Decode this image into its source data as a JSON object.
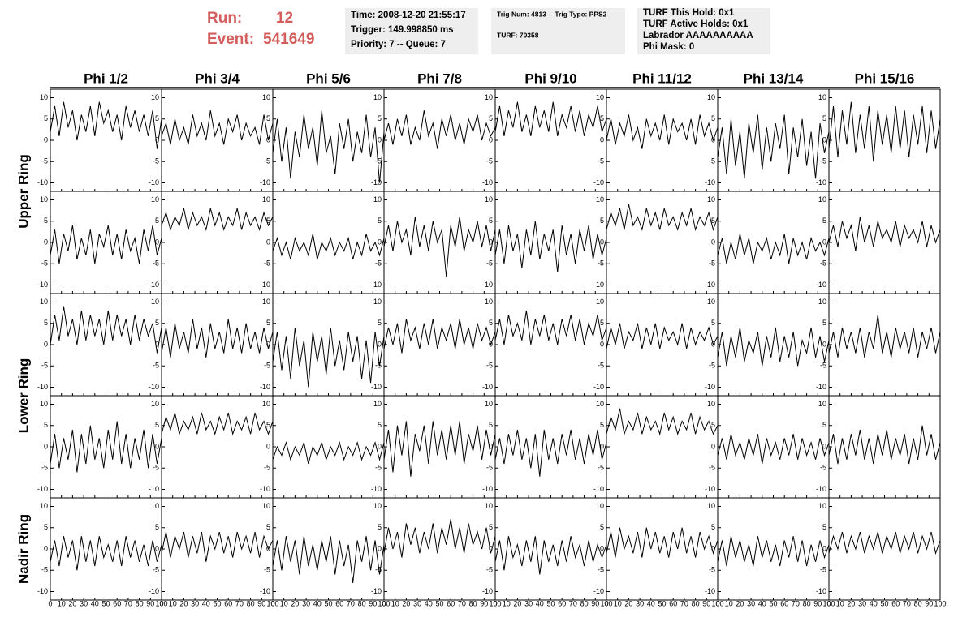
{
  "header": {
    "run_label": "Run:",
    "run": "12",
    "event_label": "Event:",
    "event": "541649",
    "box1": [
      "Time: 2008-12-20 21:55:17",
      "Trigger: 149.998850 ms",
      "Priority: 7 -- Queue: 7"
    ],
    "box2": [
      "Trig Num: 4813 -- Trig Type: PPS2",
      "TURF: 70358"
    ],
    "box3": [
      "TURF This Hold: 0x1",
      "TURF Active Holds: 0x1",
      "Labrador AAAAAAAAAA",
      "Phi Mask: 0"
    ]
  },
  "chart_data": {
    "type": "line",
    "color": "#000000",
    "columns": [
      "Phi 1/2",
      "Phi 3/4",
      "Phi 5/6",
      "Phi 7/8",
      "Phi 9/10",
      "Phi 11/12",
      "Phi 13/14",
      "Phi 15/16"
    ],
    "rows": [
      "Upper Ring",
      "Lower Ring",
      "Nadir Ring"
    ],
    "x": [
      0,
      4,
      8,
      12,
      16,
      20,
      24,
      28,
      32,
      36,
      40,
      44,
      48,
      52,
      56,
      60,
      64,
      68,
      72,
      76,
      80,
      84,
      88,
      92,
      96,
      100
    ],
    "xlim": [
      0,
      100
    ],
    "xticks": [
      0,
      10,
      20,
      30,
      40,
      50,
      60,
      70,
      80,
      90,
      100
    ],
    "ylim": [
      -12,
      12
    ],
    "yticks": [
      -10,
      -5,
      0,
      5,
      10
    ],
    "panels": [
      [
        [
          2,
          8,
          1,
          9,
          3,
          7,
          0,
          6,
          2,
          8,
          1,
          9,
          4,
          7,
          2,
          6,
          0,
          8,
          3,
          7,
          2,
          6,
          1,
          7,
          -2,
          5
        ],
        [
          1,
          4,
          -1,
          5,
          0,
          3,
          -1,
          6,
          1,
          4,
          0,
          7,
          1,
          4,
          -1,
          5,
          2,
          6,
          0,
          4,
          1,
          3,
          -1,
          6,
          0,
          4
        ],
        [
          -3,
          5,
          -5,
          3,
          -9,
          2,
          -4,
          6,
          -2,
          3,
          -6,
          7,
          -3,
          1,
          -8,
          4,
          -2,
          5,
          -5,
          2,
          -3,
          6,
          -4,
          3,
          -10,
          2
        ],
        [
          0,
          4,
          -1,
          5,
          1,
          6,
          -1,
          3,
          0,
          7,
          1,
          4,
          -2,
          5,
          1,
          6,
          0,
          4,
          -1,
          5,
          2,
          6,
          0,
          4,
          1,
          3
        ],
        [
          2,
          8,
          1,
          7,
          3,
          9,
          2,
          6,
          1,
          8,
          3,
          7,
          2,
          9,
          1,
          6,
          3,
          8,
          2,
          7,
          1,
          6,
          3,
          8,
          2,
          5
        ],
        [
          0,
          5,
          -1,
          4,
          1,
          6,
          0,
          3,
          -2,
          5,
          1,
          4,
          0,
          6,
          -1,
          5,
          2,
          4,
          0,
          5,
          -1,
          6,
          1,
          4,
          0,
          3
        ],
        [
          -4,
          3,
          -8,
          5,
          -6,
          2,
          -9,
          4,
          -3,
          6,
          -7,
          3,
          -5,
          4,
          -2,
          6,
          -8,
          3,
          -4,
          5,
          -6,
          2,
          -9,
          4,
          -3,
          2
        ],
        [
          -2,
          8,
          -4,
          7,
          -1,
          9,
          -3,
          6,
          -2,
          8,
          -5,
          7,
          -1,
          6,
          -3,
          8,
          -2,
          7,
          -4,
          6,
          -1,
          8,
          -3,
          7,
          -2,
          5
        ]
      ],
      [
        [
          -3,
          3,
          -5,
          2,
          -2,
          4,
          -4,
          1,
          -3,
          3,
          -5,
          2,
          -1,
          4,
          -3,
          2,
          -4,
          3,
          -2,
          1,
          -5,
          3,
          -2,
          4,
          -3,
          1
        ],
        [
          4,
          7,
          3,
          6,
          4,
          8,
          3,
          7,
          4,
          6,
          3,
          8,
          4,
          7,
          3,
          6,
          4,
          8,
          3,
          7,
          4,
          6,
          3,
          7,
          4,
          6
        ],
        [
          -2,
          1,
          -3,
          0,
          -4,
          1,
          -2,
          0,
          -3,
          2,
          -4,
          0,
          -2,
          1,
          -3,
          0,
          -2,
          1,
          -4,
          0,
          -3,
          2,
          -2,
          0,
          -3,
          1
        ],
        [
          -1,
          4,
          -2,
          5,
          0,
          3,
          -3,
          6,
          -1,
          4,
          -2,
          5,
          0,
          3,
          -8,
          4,
          -1,
          6,
          -2,
          3,
          0,
          5,
          -1,
          4,
          -2,
          3
        ],
        [
          -3,
          3,
          -5,
          4,
          -2,
          2,
          -6,
          3,
          -3,
          5,
          -4,
          2,
          -2,
          3,
          -7,
          4,
          -3,
          2,
          -5,
          3,
          -2,
          4,
          -4,
          2,
          -3,
          1
        ],
        [
          3,
          7,
          4,
          8,
          3,
          9,
          4,
          6,
          3,
          8,
          4,
          7,
          3,
          8,
          4,
          6,
          3,
          7,
          4,
          8,
          3,
          6,
          4,
          7,
          3,
          6
        ],
        [
          -3,
          1,
          -5,
          0,
          -4,
          2,
          -3,
          1,
          -5,
          0,
          -2,
          1,
          -4,
          0,
          -3,
          2,
          -5,
          1,
          -3,
          0,
          -4,
          1,
          -2,
          0,
          -3,
          1
        ],
        [
          0,
          4,
          -1,
          5,
          1,
          4,
          -2,
          6,
          0,
          4,
          -1,
          5,
          1,
          3,
          0,
          5,
          -1,
          4,
          1,
          3,
          0,
          5,
          -1,
          4,
          0,
          3
        ]
      ],
      [
        [
          0,
          7,
          1,
          9,
          2,
          6,
          0,
          8,
          1,
          7,
          2,
          6,
          0,
          8,
          1,
          7,
          2,
          6,
          0,
          7,
          1,
          6,
          2,
          5,
          -2,
          4
        ],
        [
          -2,
          4,
          -3,
          5,
          -1,
          3,
          -2,
          6,
          -1,
          4,
          -3,
          5,
          -1,
          3,
          -2,
          6,
          -1,
          4,
          -2,
          5,
          -1,
          3,
          -2,
          4,
          -1,
          3
        ],
        [
          -4,
          3,
          -6,
          2,
          -8,
          4,
          -5,
          1,
          -10,
          3,
          -4,
          2,
          -7,
          4,
          -5,
          1,
          -6,
          3,
          -4,
          2,
          -8,
          1,
          -9,
          3,
          -5,
          2
        ],
        [
          -1,
          4,
          0,
          5,
          -2,
          6,
          1,
          4,
          -1,
          5,
          0,
          6,
          -1,
          4,
          1,
          5,
          -1,
          6,
          0,
          4,
          -1,
          5,
          1,
          4,
          0,
          3
        ],
        [
          1,
          6,
          0,
          7,
          2,
          5,
          1,
          8,
          0,
          6,
          2,
          7,
          1,
          5,
          0,
          6,
          2,
          7,
          1,
          6,
          0,
          5,
          2,
          7,
          1,
          4
        ],
        [
          -1,
          4,
          0,
          5,
          -1,
          3,
          1,
          5,
          -1,
          4,
          0,
          5,
          -1,
          4,
          1,
          3,
          0,
          5,
          -1,
          4,
          0,
          3,
          1,
          4,
          0,
          2
        ],
        [
          -3,
          3,
          -5,
          2,
          -3,
          4,
          -4,
          1,
          -2,
          3,
          -5,
          2,
          -3,
          4,
          -4,
          2,
          -3,
          3,
          -5,
          1,
          -2,
          4,
          -3,
          2,
          -4,
          1
        ],
        [
          -2,
          3,
          -3,
          4,
          -1,
          3,
          -2,
          4,
          -3,
          3,
          -1,
          7,
          -2,
          3,
          -3,
          4,
          -1,
          3,
          -2,
          4,
          -3,
          3,
          -1,
          4,
          -2,
          3
        ]
      ],
      [
        [
          -4,
          3,
          -5,
          2,
          -3,
          4,
          -6,
          3,
          -4,
          5,
          -3,
          2,
          -5,
          4,
          -3,
          6,
          -4,
          3,
          -5,
          2,
          -3,
          4,
          -5,
          3,
          -4,
          2
        ],
        [
          3,
          7,
          4,
          8,
          3,
          6,
          4,
          7,
          3,
          8,
          4,
          6,
          3,
          7,
          4,
          8,
          3,
          6,
          4,
          7,
          3,
          8,
          4,
          6,
          3,
          6
        ],
        [
          -3,
          0,
          -2,
          1,
          -3,
          0,
          -2,
          1,
          -4,
          0,
          -2,
          1,
          -3,
          0,
          -2,
          1,
          -3,
          0,
          -2,
          1,
          -3,
          0,
          -2,
          1,
          -3,
          1
        ],
        [
          -3,
          4,
          -6,
          5,
          -2,
          6,
          -7,
          3,
          -1,
          5,
          -4,
          6,
          -2,
          4,
          -3,
          5,
          -2,
          6,
          -4,
          3,
          -1,
          5,
          -3,
          4,
          -2,
          3
        ],
        [
          -3,
          2,
          -4,
          3,
          -2,
          4,
          -3,
          2,
          -5,
          3,
          -7,
          4,
          -3,
          2,
          -4,
          3,
          -2,
          4,
          -3,
          2,
          -4,
          3,
          -2,
          4,
          -3,
          1
        ],
        [
          3,
          7,
          4,
          9,
          3,
          6,
          4,
          8,
          3,
          7,
          4,
          6,
          3,
          8,
          4,
          7,
          3,
          6,
          4,
          8,
          3,
          7,
          4,
          6,
          3,
          5
        ],
        [
          -2,
          2,
          -3,
          3,
          -2,
          1,
          -3,
          2,
          -2,
          3,
          -4,
          2,
          -2,
          1,
          -3,
          2,
          -2,
          3,
          -3,
          2,
          -2,
          1,
          -3,
          2,
          -2,
          1
        ],
        [
          -2,
          3,
          -4,
          2,
          -3,
          3,
          -2,
          4,
          -3,
          2,
          -4,
          3,
          -2,
          4,
          -3,
          2,
          -2,
          3,
          -4,
          2,
          -3,
          5,
          -2,
          3,
          -3,
          1
        ]
      ],
      [
        [
          -3,
          2,
          -4,
          3,
          -2,
          2,
          -5,
          3,
          -3,
          2,
          -4,
          3,
          -2,
          1,
          -3,
          2,
          -4,
          3,
          -2,
          2,
          -3,
          1,
          -4,
          2,
          -3,
          1
        ],
        [
          -1,
          4,
          -2,
          3,
          0,
          4,
          -2,
          3,
          -1,
          4,
          -3,
          3,
          0,
          4,
          -1,
          3,
          -2,
          4,
          0,
          3,
          -1,
          4,
          -2,
          3,
          0,
          2
        ],
        [
          -4,
          2,
          -5,
          3,
          -3,
          2,
          -6,
          3,
          -4,
          1,
          -5,
          2,
          -3,
          3,
          -6,
          2,
          -4,
          1,
          -8,
          2,
          -3,
          3,
          -5,
          2,
          -6,
          1
        ],
        [
          -1,
          5,
          0,
          4,
          -2,
          6,
          1,
          5,
          -1,
          4,
          0,
          6,
          -1,
          5,
          1,
          7,
          0,
          5,
          -1,
          6,
          1,
          4,
          0,
          5,
          -1,
          3
        ],
        [
          -3,
          2,
          -5,
          3,
          -2,
          1,
          -4,
          2,
          -3,
          3,
          -6,
          2,
          -3,
          1,
          -4,
          2,
          -3,
          3,
          -2,
          1,
          -4,
          2,
          -3,
          1,
          -2,
          1
        ],
        [
          -1,
          4,
          -2,
          5,
          0,
          3,
          -1,
          4,
          -2,
          5,
          0,
          4,
          -1,
          3,
          -2,
          4,
          0,
          5,
          -1,
          3,
          -2,
          4,
          0,
          3,
          -1,
          2
        ],
        [
          -3,
          2,
          -4,
          3,
          -2,
          2,
          -3,
          1,
          -4,
          3,
          -2,
          2,
          -3,
          1,
          -4,
          2,
          -2,
          3,
          -3,
          2,
          -4,
          1,
          -3,
          2,
          -2,
          1
        ],
        [
          -1,
          3,
          0,
          4,
          -1,
          3,
          0,
          4,
          -1,
          3,
          0,
          4,
          -1,
          3,
          0,
          4,
          -1,
          3,
          0,
          4,
          -1,
          3,
          0,
          4,
          -1,
          2
        ]
      ]
    ]
  }
}
